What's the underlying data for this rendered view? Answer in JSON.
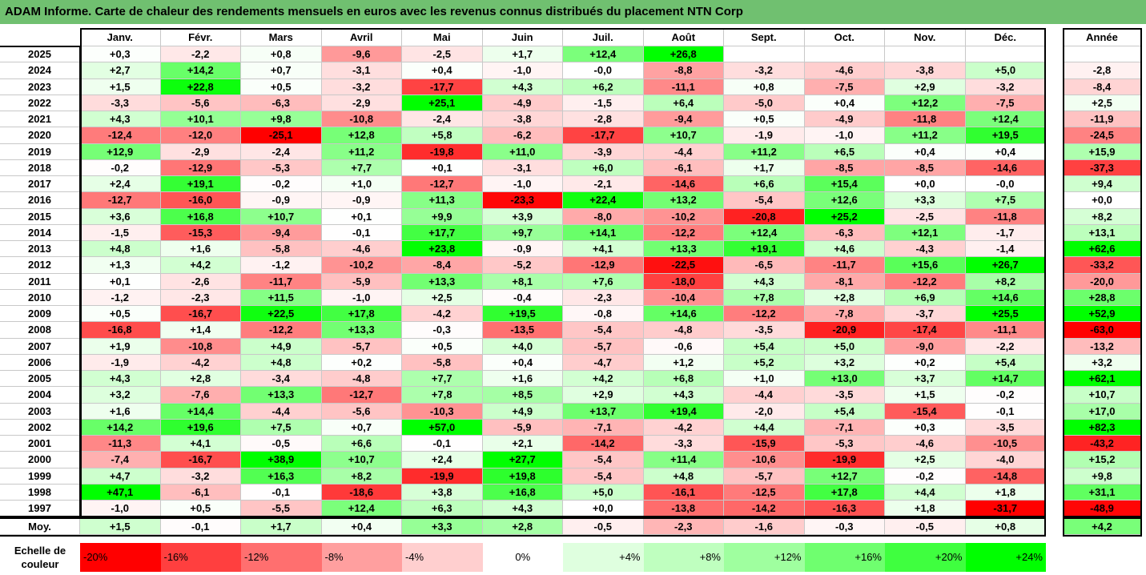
{
  "title": "ADAM Informe. Carte de chaleur des rendements mensuels en euros avec les revenus connus distribués du placement NTN Corp",
  "chart_data": {
    "type": "heatmap",
    "columns": [
      "Janv.",
      "Févr.",
      "Mars",
      "Avril",
      "Mai",
      "Juin",
      "Juil.",
      "Août",
      "Sept.",
      "Oct.",
      "Nov.",
      "Déc."
    ],
    "year_column": "Année",
    "rows": [
      {
        "year": "2025",
        "values": [
          "+0,3",
          "-2,2",
          "+0,8",
          "-9,6",
          "-2,5",
          "+1,7",
          "+12,4",
          "+26,8",
          "",
          "",
          "",
          ""
        ],
        "annual": ""
      },
      {
        "year": "2024",
        "values": [
          "+2,7",
          "+14,2",
          "+0,7",
          "-3,1",
          "+0,4",
          "-1,0",
          "-0,0",
          "-8,8",
          "-3,2",
          "-4,6",
          "-3,8",
          "+5,0"
        ],
        "annual": "-2,8"
      },
      {
        "year": "2023",
        "values": [
          "+1,5",
          "+22,8",
          "+0,5",
          "-3,2",
          "-17,7",
          "+4,3",
          "+6,2",
          "-11,1",
          "+0,8",
          "-7,5",
          "+2,9",
          "-3,2"
        ],
        "annual": "-8,4"
      },
      {
        "year": "2022",
        "values": [
          "-3,3",
          "-5,6",
          "-6,3",
          "-2,9",
          "+25,1",
          "-4,9",
          "-1,5",
          "+6,4",
          "-5,0",
          "+0,4",
          "+12,2",
          "-7,5"
        ],
        "annual": "+2,5"
      },
      {
        "year": "2021",
        "values": [
          "+4,3",
          "+10,1",
          "+9,8",
          "-10,8",
          "-2,4",
          "-3,8",
          "-2,8",
          "-9,4",
          "+0,5",
          "-4,9",
          "-11,8",
          "+12,4"
        ],
        "annual": "-11,9"
      },
      {
        "year": "2020",
        "values": [
          "-12,4",
          "-12,0",
          "-25,1",
          "+12,8",
          "+5,8",
          "-6,2",
          "-17,7",
          "+10,7",
          "-1,9",
          "-1,0",
          "+11,2",
          "+19,5"
        ],
        "annual": "-24,5"
      },
      {
        "year": "2019",
        "values": [
          "+12,9",
          "-2,9",
          "-2,4",
          "+11,2",
          "-19,8",
          "+11,0",
          "-3,9",
          "-4,4",
          "+11,2",
          "+6,5",
          "+0,4",
          "+0,4"
        ],
        "annual": "+15,9"
      },
      {
        "year": "2018",
        "values": [
          "-0,2",
          "-12,9",
          "-5,3",
          "+7,7",
          "+0,1",
          "-3,1",
          "+6,0",
          "-6,1",
          "+1,7",
          "-8,5",
          "-8,5",
          "-14,6"
        ],
        "annual": "-37,3"
      },
      {
        "year": "2017",
        "values": [
          "+2,4",
          "+19,1",
          "-0,2",
          "+1,0",
          "-12,7",
          "-1,0",
          "-2,1",
          "-14,6",
          "+6,6",
          "+15,4",
          "+0,0",
          "-0,0"
        ],
        "annual": "+9,4"
      },
      {
        "year": "2016",
        "values": [
          "-12,7",
          "-16,0",
          "-0,9",
          "-0,9",
          "+11,3",
          "-23,3",
          "+22,4",
          "+13,2",
          "-5,4",
          "+12,6",
          "+3,3",
          "+7,5"
        ],
        "annual": "+0,0"
      },
      {
        "year": "2015",
        "values": [
          "+3,6",
          "+16,8",
          "+10,7",
          "+0,1",
          "+9,9",
          "+3,9",
          "-8,0",
          "-10,2",
          "-20,8",
          "+25,2",
          "-2,5",
          "-11,8"
        ],
        "annual": "+8,2"
      },
      {
        "year": "2014",
        "values": [
          "-1,5",
          "-15,3",
          "-9,4",
          "-0,1",
          "+17,7",
          "+9,7",
          "+14,1",
          "-12,2",
          "+12,4",
          "-6,3",
          "+12,1",
          "-1,7"
        ],
        "annual": "+13,1"
      },
      {
        "year": "2013",
        "values": [
          "+4,8",
          "+1,6",
          "-5,8",
          "-4,6",
          "+23,8",
          "-0,9",
          "+4,1",
          "+13,3",
          "+19,1",
          "+4,6",
          "-4,3",
          "-1,4"
        ],
        "annual": "+62,6"
      },
      {
        "year": "2012",
        "values": [
          "+1,3",
          "+4,2",
          "-1,2",
          "-10,2",
          "-8,4",
          "-5,2",
          "-12,9",
          "-22,5",
          "-6,5",
          "-11,7",
          "+15,6",
          "+26,7"
        ],
        "annual": "-33,2"
      },
      {
        "year": "2011",
        "values": [
          "+0,1",
          "-2,6",
          "-11,7",
          "-5,9",
          "+13,3",
          "+8,1",
          "+7,6",
          "-18,0",
          "+4,3",
          "-8,1",
          "-12,2",
          "+8,2"
        ],
        "annual": "-20,0"
      },
      {
        "year": "2010",
        "values": [
          "-1,2",
          "-2,3",
          "+11,5",
          "-1,0",
          "+2,5",
          "-0,4",
          "-2,3",
          "-10,4",
          "+7,8",
          "+2,8",
          "+6,9",
          "+14,6"
        ],
        "annual": "+28,8"
      },
      {
        "year": "2009",
        "values": [
          "+0,5",
          "-16,7",
          "+22,5",
          "+17,8",
          "-4,2",
          "+19,5",
          "-0,8",
          "+14,6",
          "-12,2",
          "-7,8",
          "-3,7",
          "+25,5"
        ],
        "annual": "+52,9"
      },
      {
        "year": "2008",
        "values": [
          "-16,8",
          "+1,4",
          "-12,2",
          "+13,3",
          "-0,3",
          "-13,5",
          "-5,4",
          "-4,8",
          "-3,5",
          "-20,9",
          "-17,4",
          "-11,1"
        ],
        "annual": "-63,0"
      },
      {
        "year": "2007",
        "values": [
          "+1,9",
          "-10,8",
          "+4,9",
          "-5,7",
          "+0,5",
          "+4,0",
          "-5,7",
          "-0,6",
          "+5,4",
          "+5,0",
          "-9,0",
          "-2,2"
        ],
        "annual": "-13,2"
      },
      {
        "year": "2006",
        "values": [
          "-1,9",
          "-4,2",
          "+4,8",
          "+0,2",
          "-5,8",
          "+0,4",
          "-4,7",
          "+1,2",
          "+5,2",
          "+3,2",
          "+0,2",
          "+5,4"
        ],
        "annual": "+3,2"
      },
      {
        "year": "2005",
        "values": [
          "+4,3",
          "+2,8",
          "-3,4",
          "-4,8",
          "+7,7",
          "+1,6",
          "+4,2",
          "+6,8",
          "+1,0",
          "+13,0",
          "+3,7",
          "+14,7"
        ],
        "annual": "+62,1"
      },
      {
        "year": "2004",
        "values": [
          "+3,2",
          "-7,6",
          "+13,3",
          "-12,7",
          "+7,8",
          "+8,5",
          "+2,9",
          "+4,3",
          "-4,4",
          "-3,5",
          "+1,5",
          "-0,2"
        ],
        "annual": "+10,7"
      },
      {
        "year": "2003",
        "values": [
          "+1,6",
          "+14,4",
          "-4,4",
          "-5,6",
          "-10,3",
          "+4,9",
          "+13,7",
          "+19,4",
          "-2,0",
          "+5,4",
          "-15,4",
          "-0,1"
        ],
        "annual": "+17,0"
      },
      {
        "year": "2002",
        "values": [
          "+14,2",
          "+19,6",
          "+7,5",
          "+0,7",
          "+57,0",
          "-5,9",
          "-7,1",
          "-4,2",
          "+4,4",
          "-7,1",
          "+0,3",
          "-3,5"
        ],
        "annual": "+82,3"
      },
      {
        "year": "2001",
        "values": [
          "-11,3",
          "+4,1",
          "-0,5",
          "+6,6",
          "-0,1",
          "+2,1",
          "-14,2",
          "-3,3",
          "-15,9",
          "-5,3",
          "-4,6",
          "-10,5"
        ],
        "annual": "-43,2"
      },
      {
        "year": "2000",
        "values": [
          "-7,4",
          "-16,7",
          "+38,9",
          "+10,7",
          "+2,4",
          "+27,7",
          "-5,4",
          "+11,4",
          "-10,6",
          "-19,9",
          "+2,5",
          "-4,0"
        ],
        "annual": "+15,2"
      },
      {
        "year": "1999",
        "values": [
          "+4,7",
          "-3,2",
          "+16,3",
          "+8,2",
          "-19,9",
          "+19,8",
          "-5,4",
          "+4,8",
          "-5,7",
          "+12,7",
          "-0,2",
          "-14,8"
        ],
        "annual": "+9,8"
      },
      {
        "year": "1998",
        "values": [
          "+47,1",
          "-6,1",
          "-0,1",
          "-18,6",
          "+3,8",
          "+16,8",
          "+5,0",
          "-16,1",
          "-12,5",
          "+17,8",
          "+4,4",
          "+1,8"
        ],
        "annual": "+31,1"
      },
      {
        "year": "1997",
        "values": [
          "-1,0",
          "+0,5",
          "-5,5",
          "+12,4",
          "+6,3",
          "+4,3",
          "+0,0",
          "-13,8",
          "-14,2",
          "-16,3",
          "+1,8",
          "-31,7"
        ],
        "annual": "-48,9"
      }
    ],
    "average": {
      "label": "Moy.",
      "values": [
        "+1,5",
        "-0,1",
        "+1,7",
        "+0,4",
        "+3,3",
        "+2,8",
        "-0,5",
        "-2,3",
        "-1,6",
        "-0,3",
        "-0,5",
        "+0,8"
      ],
      "annual": "+4,2"
    },
    "color_scale": {
      "label_line1": "Echelle de",
      "label_line2": "couleur",
      "stops": [
        {
          "label": "-20%",
          "value": -20,
          "color": "#ff0000"
        },
        {
          "label": "-16%",
          "value": -16,
          "color": "#ff3f3f"
        },
        {
          "label": "-12%",
          "value": -12,
          "color": "#ff6f6f"
        },
        {
          "label": "-8%",
          "value": -8,
          "color": "#ff9f9f"
        },
        {
          "label": "-4%",
          "value": -4,
          "color": "#ffcfcf"
        },
        {
          "label": "0%",
          "value": 0,
          "color": "#ffffff"
        },
        {
          "label": "+4%",
          "value": 4,
          "color": "#dfffdf"
        },
        {
          "label": "+8%",
          "value": 8,
          "color": "#bfffbf"
        },
        {
          "label": "+12%",
          "value": 12,
          "color": "#9fff9f"
        },
        {
          "label": "+16%",
          "value": 16,
          "color": "#6fff6f"
        },
        {
          "label": "+20%",
          "value": 20,
          "color": "#3fff3f"
        },
        {
          "label": "+24%",
          "value": 24,
          "color": "#00ff00"
        }
      ]
    }
  }
}
